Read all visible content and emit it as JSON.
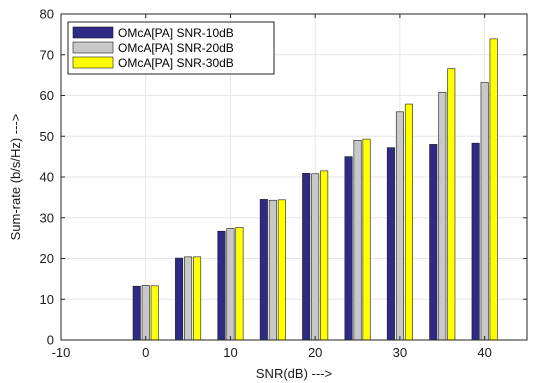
{
  "chart_data": {
    "type": "bar",
    "x": [
      0,
      5,
      10,
      15,
      20,
      25,
      30,
      35,
      40
    ],
    "xlabel": "SNR(dB) --->",
    "ylabel": "Sum-rate (b/s/Hz) --->",
    "xlim": [
      -10,
      45
    ],
    "ylim": [
      0,
      80
    ],
    "xticks": [
      "-10",
      "0",
      "10",
      "20",
      "30",
      "40"
    ],
    "xtick_values": [
      -10,
      0,
      10,
      20,
      30,
      40
    ],
    "yticks": [
      "0",
      "10",
      "20",
      "30",
      "40",
      "50",
      "60",
      "70",
      "80"
    ],
    "ytick_values": [
      0,
      10,
      20,
      30,
      40,
      50,
      60,
      70,
      80
    ],
    "grid": true,
    "legend_position": "top-left",
    "series": [
      {
        "name": "OMcA[PA] SNR-10dB",
        "color": "#2e2a85",
        "values": [
          13.2,
          20.1,
          26.7,
          34.5,
          40.9,
          45.0,
          47.2,
          48.0,
          48.3
        ]
      },
      {
        "name": "OMcA[PA] SNR-20dB",
        "color": "#c8c8c8",
        "values": [
          13.4,
          20.4,
          27.4,
          34.3,
          40.8,
          49.0,
          56.0,
          60.8,
          63.2
        ]
      },
      {
        "name": "OMcA[PA] SNR-30dB",
        "color": "#ffff00",
        "values": [
          13.3,
          20.4,
          27.6,
          34.4,
          41.5,
          49.3,
          57.9,
          66.6,
          73.9
        ]
      }
    ]
  }
}
